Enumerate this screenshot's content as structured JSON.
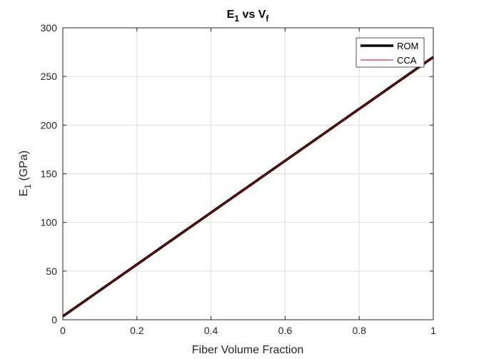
{
  "chart_data": {
    "type": "line",
    "title": {
      "main_a": "E",
      "sub_a": "1",
      "mid": " vs V",
      "sub_b": "f"
    },
    "xlabel": "Fiber Volume Fraction",
    "ylabel": {
      "main": "E",
      "sub": "1",
      "rest": " (GPa)"
    },
    "xlim": [
      0,
      1
    ],
    "ylim": [
      0,
      300
    ],
    "xticks": [
      0,
      0.2,
      0.4,
      0.6,
      0.8,
      1
    ],
    "xtick_labels": [
      "0",
      "0.2",
      "0.4",
      "0.6",
      "0.8",
      "1"
    ],
    "yticks": [
      0,
      50,
      100,
      150,
      200,
      250,
      300
    ],
    "ytick_labels": [
      "0",
      "50",
      "100",
      "150",
      "200",
      "250",
      "300"
    ],
    "grid": true,
    "legend_position": "top-right",
    "series": [
      {
        "name": "ROM",
        "color": "#000000",
        "x": [
          0,
          1
        ],
        "y": [
          3.5,
          270
        ]
      },
      {
        "name": "CCA",
        "color": "#d40000",
        "x": [
          0,
          1
        ],
        "y": [
          3.5,
          270
        ]
      }
    ]
  }
}
